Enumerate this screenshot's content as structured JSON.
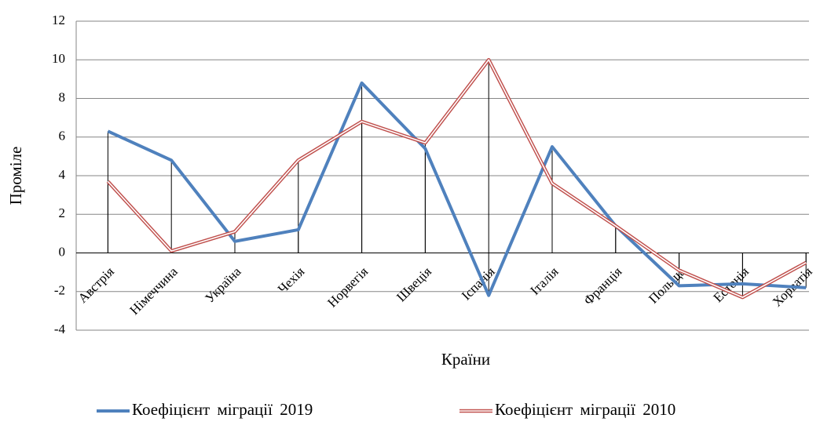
{
  "chart_data": {
    "type": "line",
    "x_label": "Країни",
    "y_label": "Проміле",
    "categories": [
      "Австрія",
      "Німеччина",
      "Україна",
      "Чехія",
      "Норвегія",
      "Швеція",
      "Іспанія",
      "Італія",
      "Франція",
      "Польща",
      "Естонія",
      "Хорватія"
    ],
    "series": [
      {
        "name": "Коефіцієнт міграції 2019",
        "color": "#4f81bd",
        "values": [
          6.3,
          4.8,
          0.6,
          1.2,
          8.8,
          5.4,
          -2.2,
          5.5,
          1.4,
          -1.7,
          -1.6,
          -1.8
        ]
      },
      {
        "name": "Коефіцієнт міграції 2010",
        "color": "#c0504d",
        "values": [
          3.7,
          0.1,
          1.1,
          4.8,
          6.8,
          5.7,
          10.0,
          3.6,
          1.4,
          -0.9,
          -2.3,
          -0.5
        ]
      }
    ],
    "ylim": [
      -4,
      12
    ],
    "yticks": [
      -4,
      -2,
      0,
      2,
      4,
      6,
      8,
      10,
      12
    ],
    "grid": true,
    "drop_lines": true
  }
}
